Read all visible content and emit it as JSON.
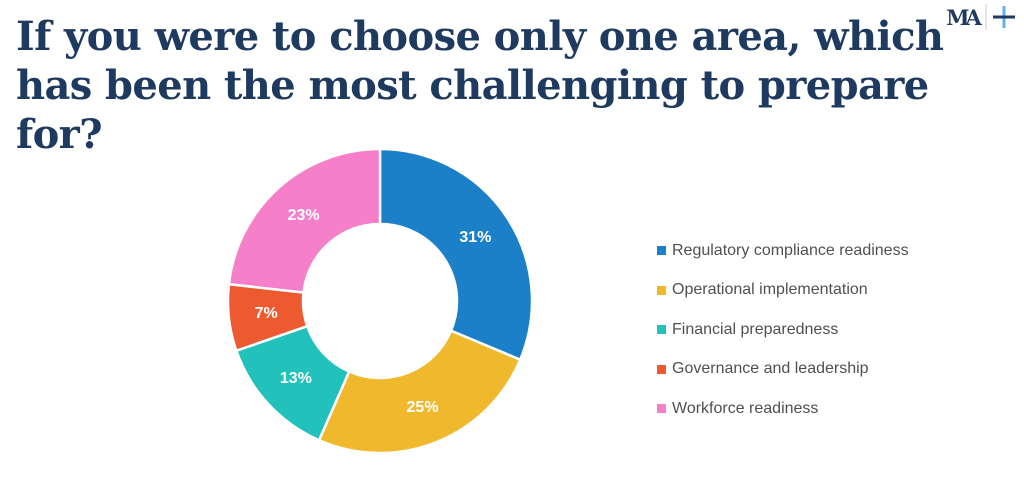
{
  "title": "If you were to choose only one area, which has been the most challenging to prepare for?",
  "logo": {
    "text": "MA"
  },
  "chart_data": {
    "type": "pie",
    "donut": true,
    "legend_position": "right",
    "categories": [
      "Regulatory compliance readiness",
      "Operational implementation",
      "Financial preparedness",
      "Governance and leadership",
      "Workforce readiness"
    ],
    "values": [
      31,
      25,
      13,
      7,
      23
    ],
    "labels": [
      "31%",
      "25%",
      "13%",
      "7%",
      "23%"
    ],
    "colors": [
      "#1b80c8",
      "#f0b92d",
      "#22c1bb",
      "#ed5a2f",
      "#f57fc8"
    ]
  }
}
